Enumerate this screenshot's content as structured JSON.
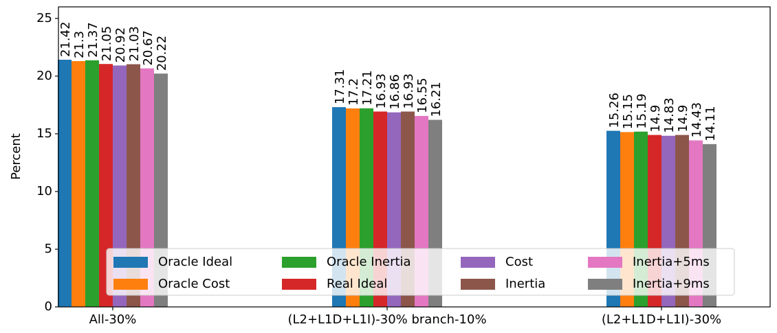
{
  "chart_data": {
    "type": "bar",
    "y_label": "Percent",
    "categories": [
      "All-30%",
      "(L2+L1D+L1I)-30% branch-10%",
      "(L2+L1D+L1I)-30%"
    ],
    "series": [
      {
        "name": "Oracle Ideal",
        "color": "#1f77b4",
        "values": [
          21.42,
          17.31,
          15.26
        ]
      },
      {
        "name": "Oracle Cost",
        "color": "#ff7f0e",
        "values": [
          21.3,
          17.2,
          15.15
        ]
      },
      {
        "name": "Oracle Inertia",
        "color": "#2ca02c",
        "values": [
          21.37,
          17.21,
          15.19
        ]
      },
      {
        "name": "Real Ideal",
        "color": "#d62728",
        "values": [
          21.05,
          16.93,
          14.9
        ]
      },
      {
        "name": "Cost",
        "color": "#9467bd",
        "values": [
          20.92,
          16.86,
          14.83
        ]
      },
      {
        "name": "Inertia",
        "color": "#8c564b",
        "values": [
          21.03,
          16.93,
          14.9
        ]
      },
      {
        "name": "Inertia+5ms",
        "color": "#e377c2",
        "values": [
          20.67,
          16.55,
          14.43
        ]
      },
      {
        "name": "Inertia+9ms",
        "color": "#7f7f7f",
        "values": [
          20.22,
          16.21,
          14.11
        ]
      }
    ],
    "ylim": [
      0,
      26
    ],
    "yticks": [
      0,
      5,
      10,
      15,
      20,
      25
    ],
    "legend": "lower center",
    "legend_columns": 4
  }
}
